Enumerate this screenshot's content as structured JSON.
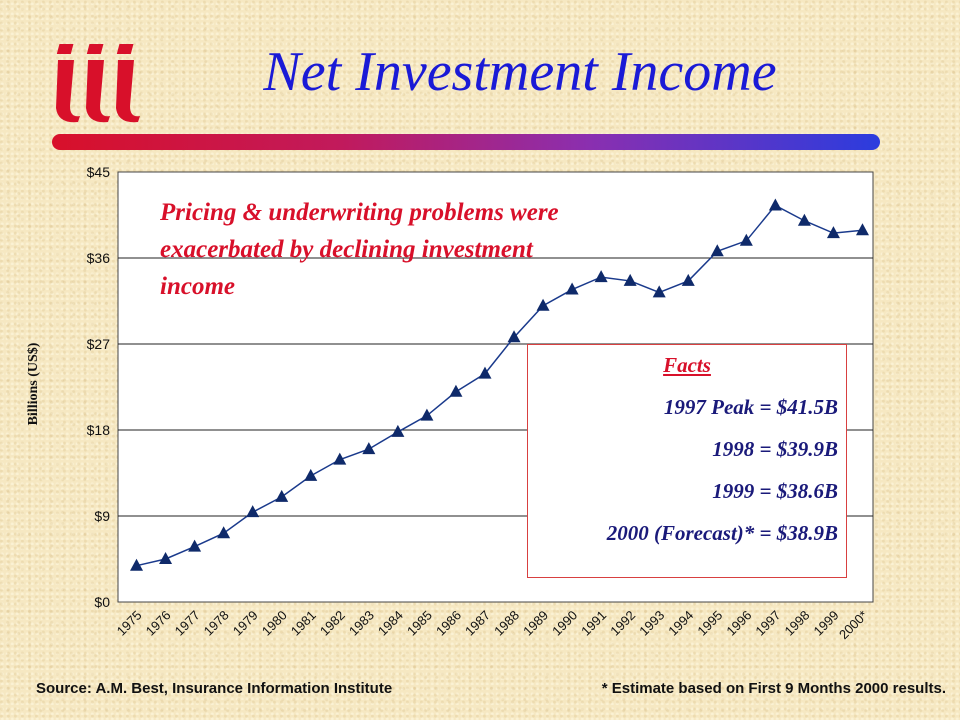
{
  "slide": {
    "title": "Net Investment Income",
    "annotation": "Pricing & underwriting problems were exacerbated by declining investment income",
    "source": "Source:  A.M. Best, Insurance Information Institute",
    "footnote": "* Estimate based on First 9 Months 2000 results."
  },
  "facts": {
    "title": "Facts",
    "rows": [
      "1997 Peak = $41.5B",
      "1998   = $39.9B",
      "1999   = $38.6B",
      "2000 (Forecast)* = $38.9B"
    ]
  },
  "colors": {
    "title": "#1a1ad6",
    "annotation": "#d8102a",
    "line": "#1a3a8c",
    "marker": "#0f2a6a",
    "logo": "#d8102a"
  },
  "logo": {
    "icon": "iii-logo"
  },
  "chart_data": {
    "type": "line",
    "title": "",
    "xlabel": "",
    "ylabel": "Billions (US$)",
    "ylim": [
      0,
      45
    ],
    "yticks": [
      0,
      9,
      18,
      27,
      36,
      45
    ],
    "ytick_labels": [
      "$0",
      "$9",
      "$18",
      "$27",
      "$36",
      "$45"
    ],
    "grid": "horizontal",
    "categories": [
      "1975",
      "1976",
      "1977",
      "1978",
      "1979",
      "1980",
      "1981",
      "1982",
      "1983",
      "1984",
      "1985",
      "1986",
      "1987",
      "1988",
      "1989",
      "1990",
      "1991",
      "1992",
      "1993",
      "1994",
      "1995",
      "1996",
      "1997",
      "1998",
      "1999",
      "2000*"
    ],
    "series": [
      {
        "values": [
          3.8,
          4.5,
          5.8,
          7.2,
          9.4,
          11.0,
          13.2,
          14.9,
          16.0,
          17.8,
          19.5,
          22.0,
          23.9,
          27.7,
          31.0,
          32.7,
          34.0,
          33.6,
          32.4,
          33.6,
          36.7,
          37.8,
          41.5,
          39.9,
          38.6,
          38.9
        ]
      }
    ]
  }
}
